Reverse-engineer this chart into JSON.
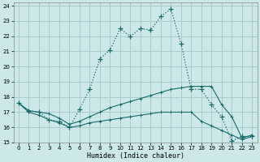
{
  "xlabel": "Humidex (Indice chaleur)",
  "bg_color": "#cce8e8",
  "grid_color": "#aacccc",
  "line_color": "#1a6b6b",
  "xlim": [
    -0.5,
    23.5
  ],
  "ylim": [
    15,
    24.2
  ],
  "xticks": [
    0,
    1,
    2,
    3,
    4,
    5,
    6,
    7,
    8,
    9,
    10,
    11,
    12,
    13,
    14,
    15,
    16,
    17,
    18,
    19,
    20,
    21,
    22,
    23
  ],
  "yticks": [
    15,
    16,
    17,
    18,
    19,
    20,
    21,
    22,
    23,
    24
  ],
  "line1_x": [
    0,
    1,
    2,
    3,
    4,
    5,
    6,
    7,
    8,
    9,
    10,
    11,
    12,
    13,
    14,
    15,
    16,
    17,
    18,
    19,
    20,
    21,
    22,
    23
  ],
  "line1_y": [
    17.6,
    17.1,
    17.0,
    16.5,
    16.4,
    16.0,
    17.2,
    18.5,
    20.5,
    21.1,
    22.5,
    22.0,
    22.5,
    22.4,
    23.3,
    23.8,
    21.5,
    18.5,
    18.5,
    17.5,
    16.7,
    15.1,
    15.4,
    15.4
  ],
  "line2_x": [
    0,
    1,
    2,
    3,
    4,
    5,
    6,
    7,
    8,
    9,
    10,
    11,
    12,
    13,
    14,
    15,
    16,
    17,
    18,
    19,
    20,
    21,
    22,
    23
  ],
  "line2_y": [
    17.6,
    17.1,
    17.0,
    16.9,
    16.6,
    16.2,
    16.4,
    16.7,
    17.0,
    17.3,
    17.5,
    17.7,
    17.9,
    18.1,
    18.3,
    18.5,
    18.6,
    18.7,
    18.7,
    18.7,
    17.5,
    16.7,
    15.3,
    15.5
  ],
  "line3_x": [
    0,
    1,
    2,
    3,
    4,
    5,
    6,
    7,
    8,
    9,
    10,
    11,
    12,
    13,
    14,
    15,
    16,
    17,
    18,
    19,
    20,
    21,
    22,
    23
  ],
  "line3_y": [
    17.6,
    17.0,
    16.8,
    16.5,
    16.3,
    16.0,
    16.1,
    16.3,
    16.4,
    16.5,
    16.6,
    16.7,
    16.8,
    16.9,
    17.0,
    17.0,
    17.0,
    17.0,
    16.4,
    16.1,
    15.8,
    15.5,
    15.2,
    15.4
  ]
}
